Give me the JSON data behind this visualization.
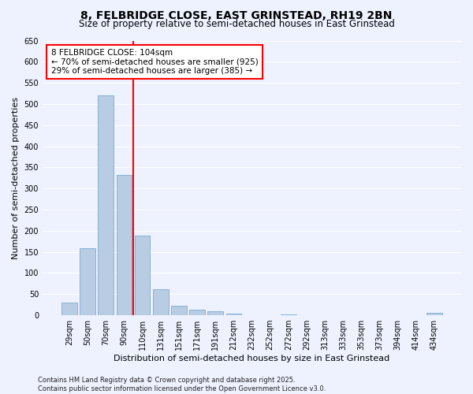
{
  "title": "8, FELBRIDGE CLOSE, EAST GRINSTEAD, RH19 2BN",
  "subtitle": "Size of property relative to semi-detached houses in East Grinstead",
  "xlabel": "Distribution of semi-detached houses by size in East Grinstead",
  "ylabel": "Number of semi-detached properties",
  "categories": [
    "29sqm",
    "50sqm",
    "70sqm",
    "90sqm",
    "110sqm",
    "131sqm",
    "151sqm",
    "171sqm",
    "191sqm",
    "212sqm",
    "232sqm",
    "252sqm",
    "272sqm",
    "292sqm",
    "313sqm",
    "333sqm",
    "353sqm",
    "373sqm",
    "394sqm",
    "414sqm",
    "434sqm"
  ],
  "values": [
    30,
    158,
    520,
    333,
    188,
    62,
    22,
    14,
    9,
    3,
    0,
    0,
    2,
    0,
    0,
    0,
    0,
    0,
    0,
    0,
    5
  ],
  "bar_color": "#b8cce4",
  "bar_edge_color": "#7aaad0",
  "vline_x": 3.5,
  "vline_color": "red",
  "annotation_title": "8 FELBRIDGE CLOSE: 104sqm",
  "annotation_line1": "← 70% of semi-detached houses are smaller (925)",
  "annotation_line2": "29% of semi-detached houses are larger (385) →",
  "ylim": [
    0,
    650
  ],
  "yticks": [
    0,
    50,
    100,
    150,
    200,
    250,
    300,
    350,
    400,
    450,
    500,
    550,
    600,
    650
  ],
  "footer_line1": "Contains HM Land Registry data © Crown copyright and database right 2025.",
  "footer_line2": "Contains public sector information licensed under the Open Government Licence v3.0.",
  "fig_background": "#eef2ff",
  "plot_background": "#eef2ff",
  "grid_color": "white",
  "title_fontsize": 10,
  "subtitle_fontsize": 8.5,
  "ylabel_fontsize": 8,
  "xlabel_fontsize": 8,
  "tick_fontsize": 7,
  "footer_fontsize": 6,
  "annotation_fontsize": 7.5
}
